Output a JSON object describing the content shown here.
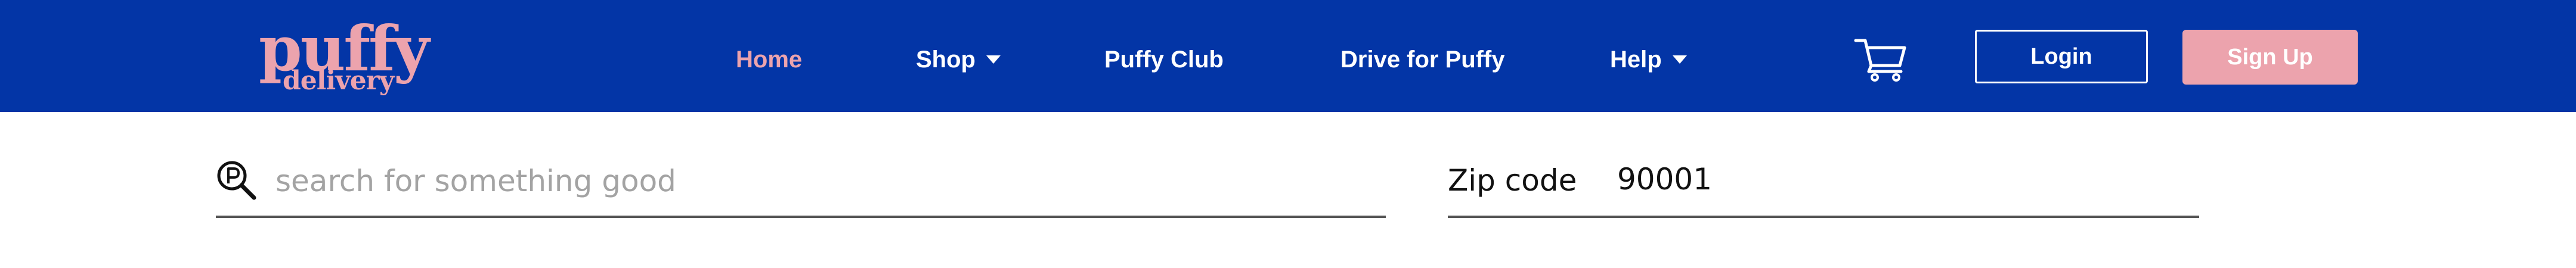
{
  "header": {
    "logo": {
      "main": "puffy",
      "sub": "delivery"
    },
    "nav": {
      "home": "Home",
      "shop": "Shop",
      "puffy_club": "Puffy Club",
      "drive": "Drive for Puffy",
      "help": "Help"
    },
    "cart_icon": "shopping-cart-icon",
    "login_label": "Login",
    "signup_label": "Sign Up"
  },
  "search": {
    "placeholder": "search for something good",
    "value": "",
    "icon": "search-icon"
  },
  "zip": {
    "label": "Zip code",
    "value": "90001"
  },
  "colors": {
    "header_bg": "#0335a6",
    "accent_pink": "#eca3ad",
    "white": "#ffffff"
  }
}
